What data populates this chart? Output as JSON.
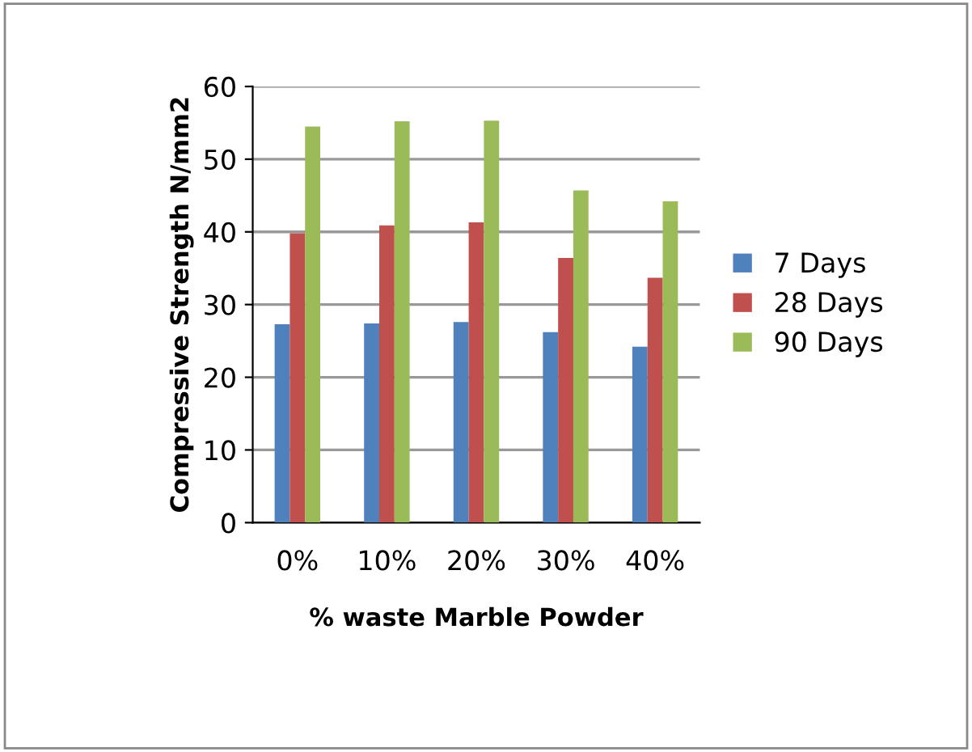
{
  "chart_data": {
    "type": "bar",
    "xlabel": "% waste Marble Powder",
    "ylabel": "Compressive Strength N/mm2",
    "categories": [
      "0%",
      "10%",
      "20%",
      "30%",
      "40%"
    ],
    "series": [
      {
        "name": "7 Days",
        "color": "#4f81bd",
        "values": [
          27.3,
          27.4,
          27.6,
          26.2,
          24.2
        ]
      },
      {
        "name": "28 Days",
        "color": "#c0504d",
        "values": [
          39.8,
          40.9,
          41.3,
          36.4,
          33.7
        ]
      },
      {
        "name": "90 Days",
        "color": "#9bbb59",
        "values": [
          54.5,
          55.2,
          55.3,
          45.7,
          44.2
        ]
      }
    ],
    "ylim": [
      0,
      60
    ],
    "yticks": [
      0,
      10,
      20,
      30,
      40,
      50,
      60
    ],
    "grid": "y",
    "legend": "right"
  }
}
